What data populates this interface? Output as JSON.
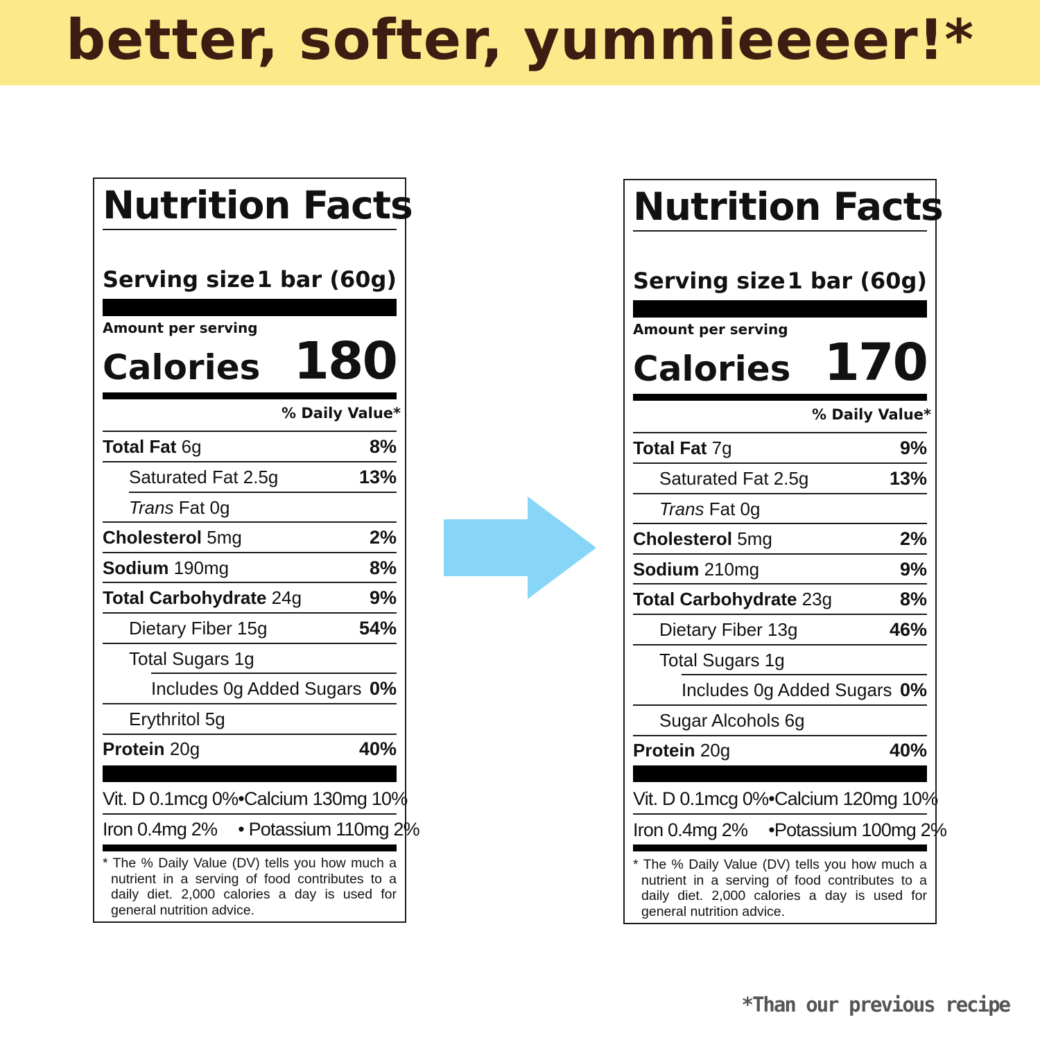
{
  "banner": {
    "text": "better, softer, yummieeeer!*"
  },
  "footnote": "*Than our previous recipe",
  "labels": [
    {
      "title": "Nutrition Facts",
      "serving_label": "Serving size",
      "serving_value": "1 bar (60g)",
      "amount_per_serving": "Amount per serving",
      "calories_label": "Calories",
      "calories_value": "180",
      "dv_header": "% Daily Value*",
      "total_fat": {
        "name": "Total Fat",
        "amount": "6g",
        "dv": "8%"
      },
      "saturated_fat": {
        "name": "Saturated Fat 2.5g",
        "dv": "13%"
      },
      "trans_fat": {
        "italic": "Trans",
        "name": " Fat 0g"
      },
      "cholesterol": {
        "name": "Cholesterol",
        "amount": "5mg",
        "dv": "2%"
      },
      "sodium": {
        "name": "Sodium",
        "amount": "190mg",
        "dv": "8%"
      },
      "total_carb": {
        "name": "Total Carbohydrate",
        "amount": "24g",
        "dv": "9%"
      },
      "fiber": {
        "name": "Dietary Fiber 15g",
        "dv": "54%"
      },
      "sugars": {
        "name": "Total Sugars 1g"
      },
      "added_sugars": {
        "name": "Includes 0g Added Sugars",
        "dv": "0%"
      },
      "extra": {
        "name": "Erythritol 5g"
      },
      "protein": {
        "name": "Protein",
        "amount": "20g",
        "dv": "40%"
      },
      "vit_row1": {
        "a": "Vit. D 0.1mcg 0%",
        "bullet": "•",
        "b": "Calcium 130mg 10%"
      },
      "vit_row2": {
        "a": "Iron 0.4mg 2%",
        "bullet": "•",
        "b": "Potassium 110mg 2%"
      },
      "footer": "* The % Daily Value (DV) tells you how much a nutrient in a serving of food contributes to a daily diet. 2,000 calories a day is used for general nutrition advice."
    },
    {
      "title": "Nutrition Facts",
      "serving_label": "Serving size",
      "serving_value": "1 bar (60g)",
      "amount_per_serving": "Amount per serving",
      "calories_label": "Calories",
      "calories_value": "170",
      "dv_header": "% Daily Value*",
      "total_fat": {
        "name": "Total Fat",
        "amount": "7g",
        "dv": "9%"
      },
      "saturated_fat": {
        "name": "Saturated Fat 2.5g",
        "dv": "13%"
      },
      "trans_fat": {
        "italic": "Trans",
        "name": " Fat 0g"
      },
      "cholesterol": {
        "name": "Cholesterol",
        "amount": "5mg",
        "dv": "2%"
      },
      "sodium": {
        "name": "Sodium",
        "amount": "210mg",
        "dv": "9%"
      },
      "total_carb": {
        "name": "Total Carbohydrate",
        "amount": "23g",
        "dv": "8%"
      },
      "fiber": {
        "name": "Dietary Fiber 13g",
        "dv": "46%"
      },
      "sugars": {
        "name": "Total Sugars 1g"
      },
      "added_sugars": {
        "name": "Includes 0g Added Sugars",
        "dv": "0%"
      },
      "extra": {
        "name": "Sugar Alcohols 6g"
      },
      "protein": {
        "name": "Protein",
        "amount": "20g",
        "dv": "40%"
      },
      "vit_row1": {
        "a": "Vit. D 0.1mcg 0%",
        "bullet": "•",
        "b": "Calcium 120mg 10%"
      },
      "vit_row2": {
        "a": "Iron 0.4mg 2%",
        "bullet": "•",
        "b": "Potassium 100mg 2%"
      },
      "footer": "* The % Daily Value (DV) tells you how much a nutrient in a serving of food contributes to a daily diet. 2,000 calories a day is used for general nutrition advice."
    }
  ],
  "colors": {
    "banner_bg": "#fbe98a",
    "banner_text": "#3b1d12",
    "arrow": "#87d5f7"
  },
  "icons": {
    "arrow": "arrow-right-icon"
  }
}
